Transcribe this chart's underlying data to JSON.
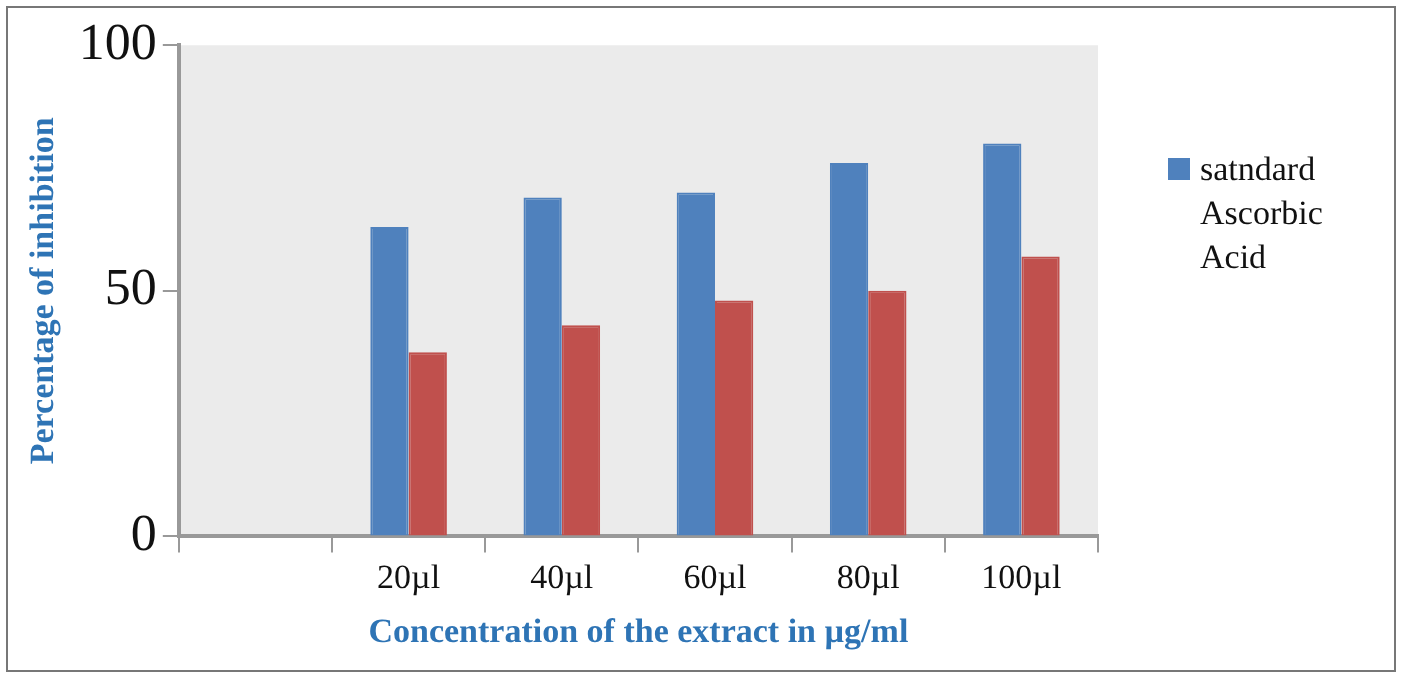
{
  "chart_data": {
    "type": "bar",
    "xlabel": "Concentration of the extract in µg/ml",
    "ylabel": "Percentage of inhibition",
    "categories": [
      null,
      "20µl",
      "40µl",
      "60µl",
      "80µl",
      "100µl"
    ],
    "series": [
      {
        "name": "satndard Ascorbic Acid",
        "color": "#4f81bd",
        "values": [
          null,
          63,
          69,
          70,
          76,
          80
        ]
      },
      {
        "color": "#c0504d",
        "values": [
          null,
          37.5,
          43,
          48,
          50,
          57
        ]
      }
    ],
    "ylim": [
      0,
      100
    ],
    "yticks": [
      0,
      50,
      100
    ],
    "grid": false,
    "legend": "right"
  }
}
